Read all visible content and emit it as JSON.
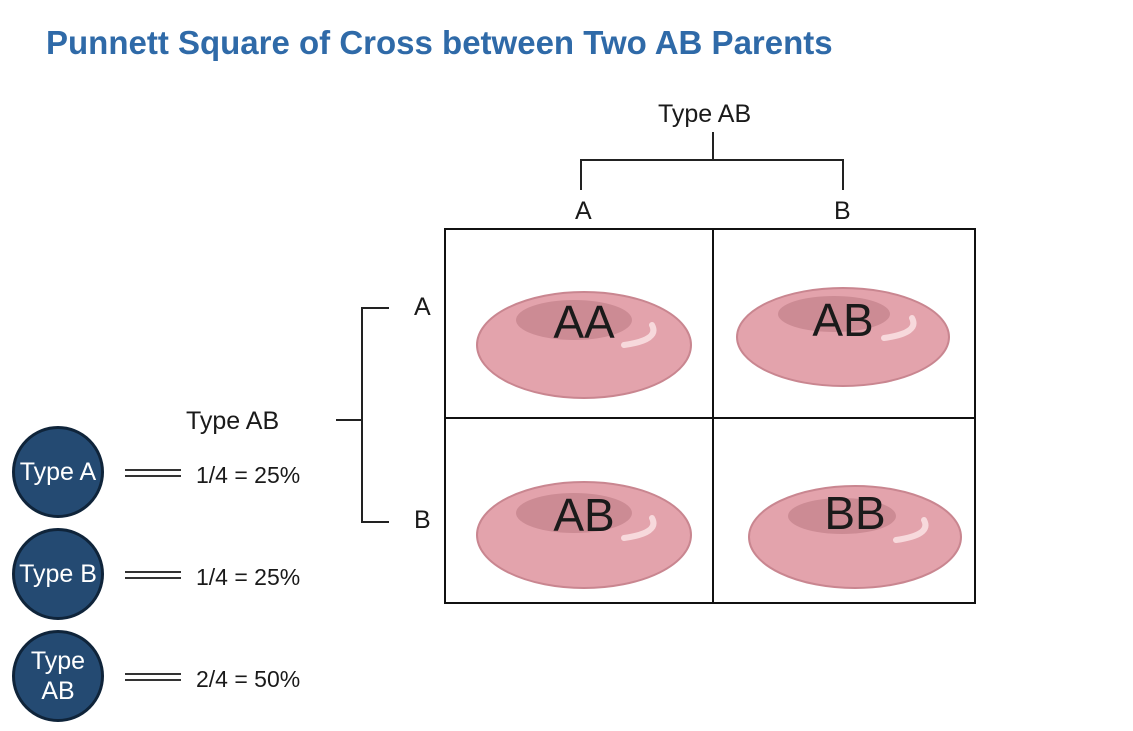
{
  "title": "Punnett Square of Cross between Two AB Parents",
  "top_parent": {
    "label": "Type AB",
    "alleles": [
      "A",
      "B"
    ]
  },
  "left_parent": {
    "label": "Type AB",
    "alleles": [
      "A",
      "B"
    ]
  },
  "cells": [
    "AA",
    "AB",
    "AB",
    "BB"
  ],
  "colors": {
    "title": "#2f6aa8",
    "circle": "#244a72",
    "blood_cell": "#e3a3ac"
  },
  "icons": [
    "red-blood-cell-icon"
  ],
  "outcomes": [
    {
      "type": "Type A",
      "fraction": "1/4 = 25%"
    },
    {
      "type": "Type B",
      "fraction": "1/4 = 25%"
    },
    {
      "type": "Type\nAB",
      "fraction": "2/4 = 50%"
    }
  ]
}
